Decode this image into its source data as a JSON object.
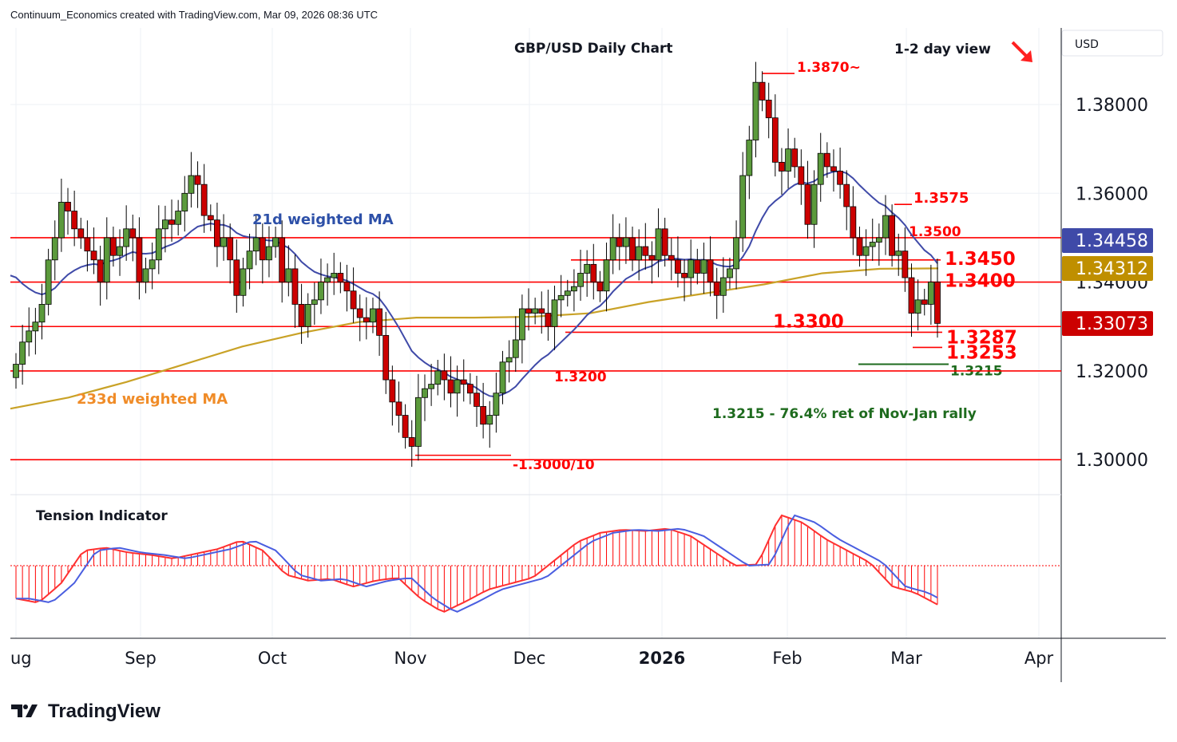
{
  "header": {
    "attribution": "Continuum_Economics created with TradingView.com, Mar 09, 2026 08:36 UTC"
  },
  "brand": "TradingView",
  "chart_data": {
    "type": "candlestick",
    "title": "GBP/USD Daily Chart",
    "view_label": "1-2 day view",
    "view_direction": "down",
    "currency": "USD",
    "ylim": [
      1.2925,
      1.3932
    ],
    "y_ticks": [
      "1.38000",
      "1.36000",
      "1.34000",
      "1.32000",
      "1.30000"
    ],
    "y_tick_values": [
      1.38,
      1.36,
      1.34,
      1.32,
      1.3
    ],
    "x_ticks": [
      "ug",
      "Sep",
      "Oct",
      "Nov",
      "Dec",
      "2026",
      "Feb",
      "Mar",
      "Apr"
    ],
    "grid": true,
    "closes": [
      1.3215,
      1.3265,
      1.329,
      1.331,
      1.335,
      1.345,
      1.35,
      1.358,
      1.356,
      1.352,
      1.35,
      1.347,
      1.345,
      1.34,
      1.35,
      1.346,
      1.348,
      1.352,
      1.35,
      1.34,
      1.343,
      1.345,
      1.352,
      1.354,
      1.353,
      1.356,
      1.36,
      1.364,
      1.362,
      1.355,
      1.354,
      1.348,
      1.35,
      1.345,
      1.337,
      1.343,
      1.347,
      1.35,
      1.345,
      1.348,
      1.35,
      1.34,
      1.343,
      1.335,
      1.33,
      1.335,
      1.336,
      1.34,
      1.341,
      1.342,
      1.34,
      1.338,
      1.334,
      1.332,
      1.331,
      1.334,
      1.328,
      1.318,
      1.313,
      1.31,
      1.305,
      1.303,
      1.314,
      1.316,
      1.317,
      1.32,
      1.318,
      1.315,
      1.318,
      1.317,
      1.315,
      1.312,
      1.308,
      1.31,
      1.315,
      1.322,
      1.323,
      1.327,
      1.334,
      1.333,
      1.334,
      1.333,
      1.33,
      1.336,
      1.337,
      1.338,
      1.339,
      1.342,
      1.344,
      1.34,
      1.338,
      1.345,
      1.35,
      1.348,
      1.35,
      1.345,
      1.348,
      1.346,
      1.345,
      1.352,
      1.346,
      1.345,
      1.342,
      1.341,
      1.345,
      1.342,
      1.345,
      1.34,
      1.337,
      1.341,
      1.343,
      1.35,
      1.364,
      1.372,
      1.385,
      1.381,
      1.377,
      1.367,
      1.365,
      1.37,
      1.366,
      1.362,
      1.353,
      1.362,
      1.369,
      1.366,
      1.365,
      1.362,
      1.357,
      1.35,
      1.346,
      1.348,
      1.349,
      1.35,
      1.355,
      1.346,
      1.347,
      1.341,
      1.333,
      1.336,
      1.335,
      1.34,
      1.3307
    ],
    "ma233_points": [
      1.3115,
      1.314,
      1.3175,
      1.3215,
      1.3255,
      1.3285,
      1.331,
      1.332,
      1.332,
      1.3322,
      1.333,
      1.3355,
      1.3375,
      1.3395,
      1.342,
      1.343,
      1.3431
    ],
    "tension_points": [
      -0.55,
      -0.62,
      -0.3,
      0.25,
      0.3,
      0.22,
      0.18,
      0.12,
      0.2,
      0.28,
      0.42,
      0.25,
      -0.15,
      -0.25,
      -0.22,
      -0.35,
      -0.25,
      -0.2,
      -0.55,
      -0.78,
      -0.6,
      -0.4,
      -0.3,
      -0.2,
      0.1,
      0.4,
      0.55,
      0.6,
      0.58,
      0.62,
      0.5,
      0.25,
      0.0,
      0.02,
      0.85,
      0.72,
      0.45,
      0.25,
      0.05,
      -0.35,
      -0.45,
      -0.65
    ],
    "series_labels": {
      "ma21": "21d weighted MA",
      "ma233": "233d weighted MA",
      "indicator": "Tension Indicator"
    },
    "price_badges": [
      {
        "value": "1.34458",
        "color": "#3f4aa8"
      },
      {
        "value": "1.34312",
        "color": "#bf8f00"
      },
      {
        "value": "1.33073",
        "color": "#cc0000"
      }
    ],
    "levels": [
      {
        "value": 1.387,
        "label": "1.3870~"
      },
      {
        "value": 1.3575,
        "label": "1.3575"
      },
      {
        "value": 1.35,
        "label": "1.3500"
      },
      {
        "value": 1.345,
        "label": "1.3450"
      },
      {
        "value": 1.34,
        "label": "1.3400"
      },
      {
        "value": 1.33,
        "label": "1.3300"
      },
      {
        "value": 1.3287,
        "label": "1.3287"
      },
      {
        "value": 1.3253,
        "label": "1.3253"
      },
      {
        "value": 1.3215,
        "label": "1.3215"
      },
      {
        "value": 1.32,
        "label": "1.3200"
      },
      {
        "value": 1.3,
        "label": "1.3000/10"
      }
    ],
    "annotation": "1.3215 - 76.4% ret of Nov-Jan rally",
    "colors": {
      "up": "#5b9a3c",
      "down": "#cc0000",
      "level": "#ff0000",
      "ma21": "#3f4aa8",
      "ma233": "#c9a227",
      "fib": "#1e6b1e"
    }
  }
}
